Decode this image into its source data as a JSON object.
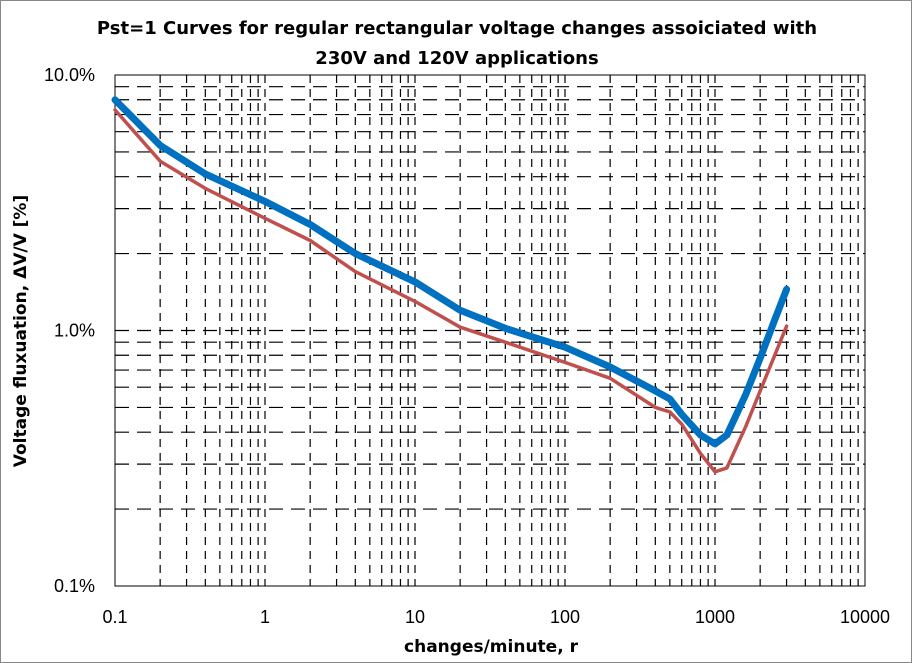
{
  "chart_data": {
    "type": "line",
    "title_lines": [
      "Pst=1 Curves for regular rectangular voltage changes assoiciated with",
      "230V and 120V applications"
    ],
    "xlabel": "changes/minute, r",
    "ylabel": "Voltage fluxuation, ΔV/V [%]",
    "xscale": "log",
    "yscale": "log",
    "xlim": [
      0.1,
      10000
    ],
    "ylim": [
      0.1,
      10
    ],
    "x_tick_labels": [
      "0.1",
      "1",
      "10",
      "100",
      "1000",
      "10000"
    ],
    "y_tick_labels": [
      "0.1%",
      "1.0%",
      "10.0%"
    ],
    "grid": "dashed, major and minor",
    "legend": "none",
    "series": [
      {
        "color": "#0070C0",
        "x": [
          0.1,
          0.2,
          0.4,
          1,
          2,
          4,
          10,
          20,
          40,
          100,
          200,
          400,
          500,
          600,
          800,
          1000,
          1200,
          1600,
          2000,
          2500,
          3000
        ],
        "y": [
          8.0,
          5.3,
          4.1,
          3.2,
          2.6,
          2.0,
          1.55,
          1.2,
          1.02,
          0.86,
          0.72,
          0.58,
          0.54,
          0.47,
          0.39,
          0.36,
          0.39,
          0.56,
          0.78,
          1.1,
          1.45
        ]
      },
      {
        "color": "#C0504D",
        "x": [
          0.1,
          0.2,
          0.4,
          1,
          2,
          4,
          10,
          20,
          40,
          100,
          200,
          400,
          500,
          600,
          800,
          1000,
          1200,
          1600,
          2000,
          2500,
          3000
        ],
        "y": [
          7.3,
          4.6,
          3.6,
          2.75,
          2.25,
          1.7,
          1.3,
          1.03,
          0.9,
          0.75,
          0.65,
          0.5,
          0.48,
          0.43,
          0.33,
          0.28,
          0.29,
          0.42,
          0.58,
          0.8,
          1.04
        ]
      }
    ]
  }
}
